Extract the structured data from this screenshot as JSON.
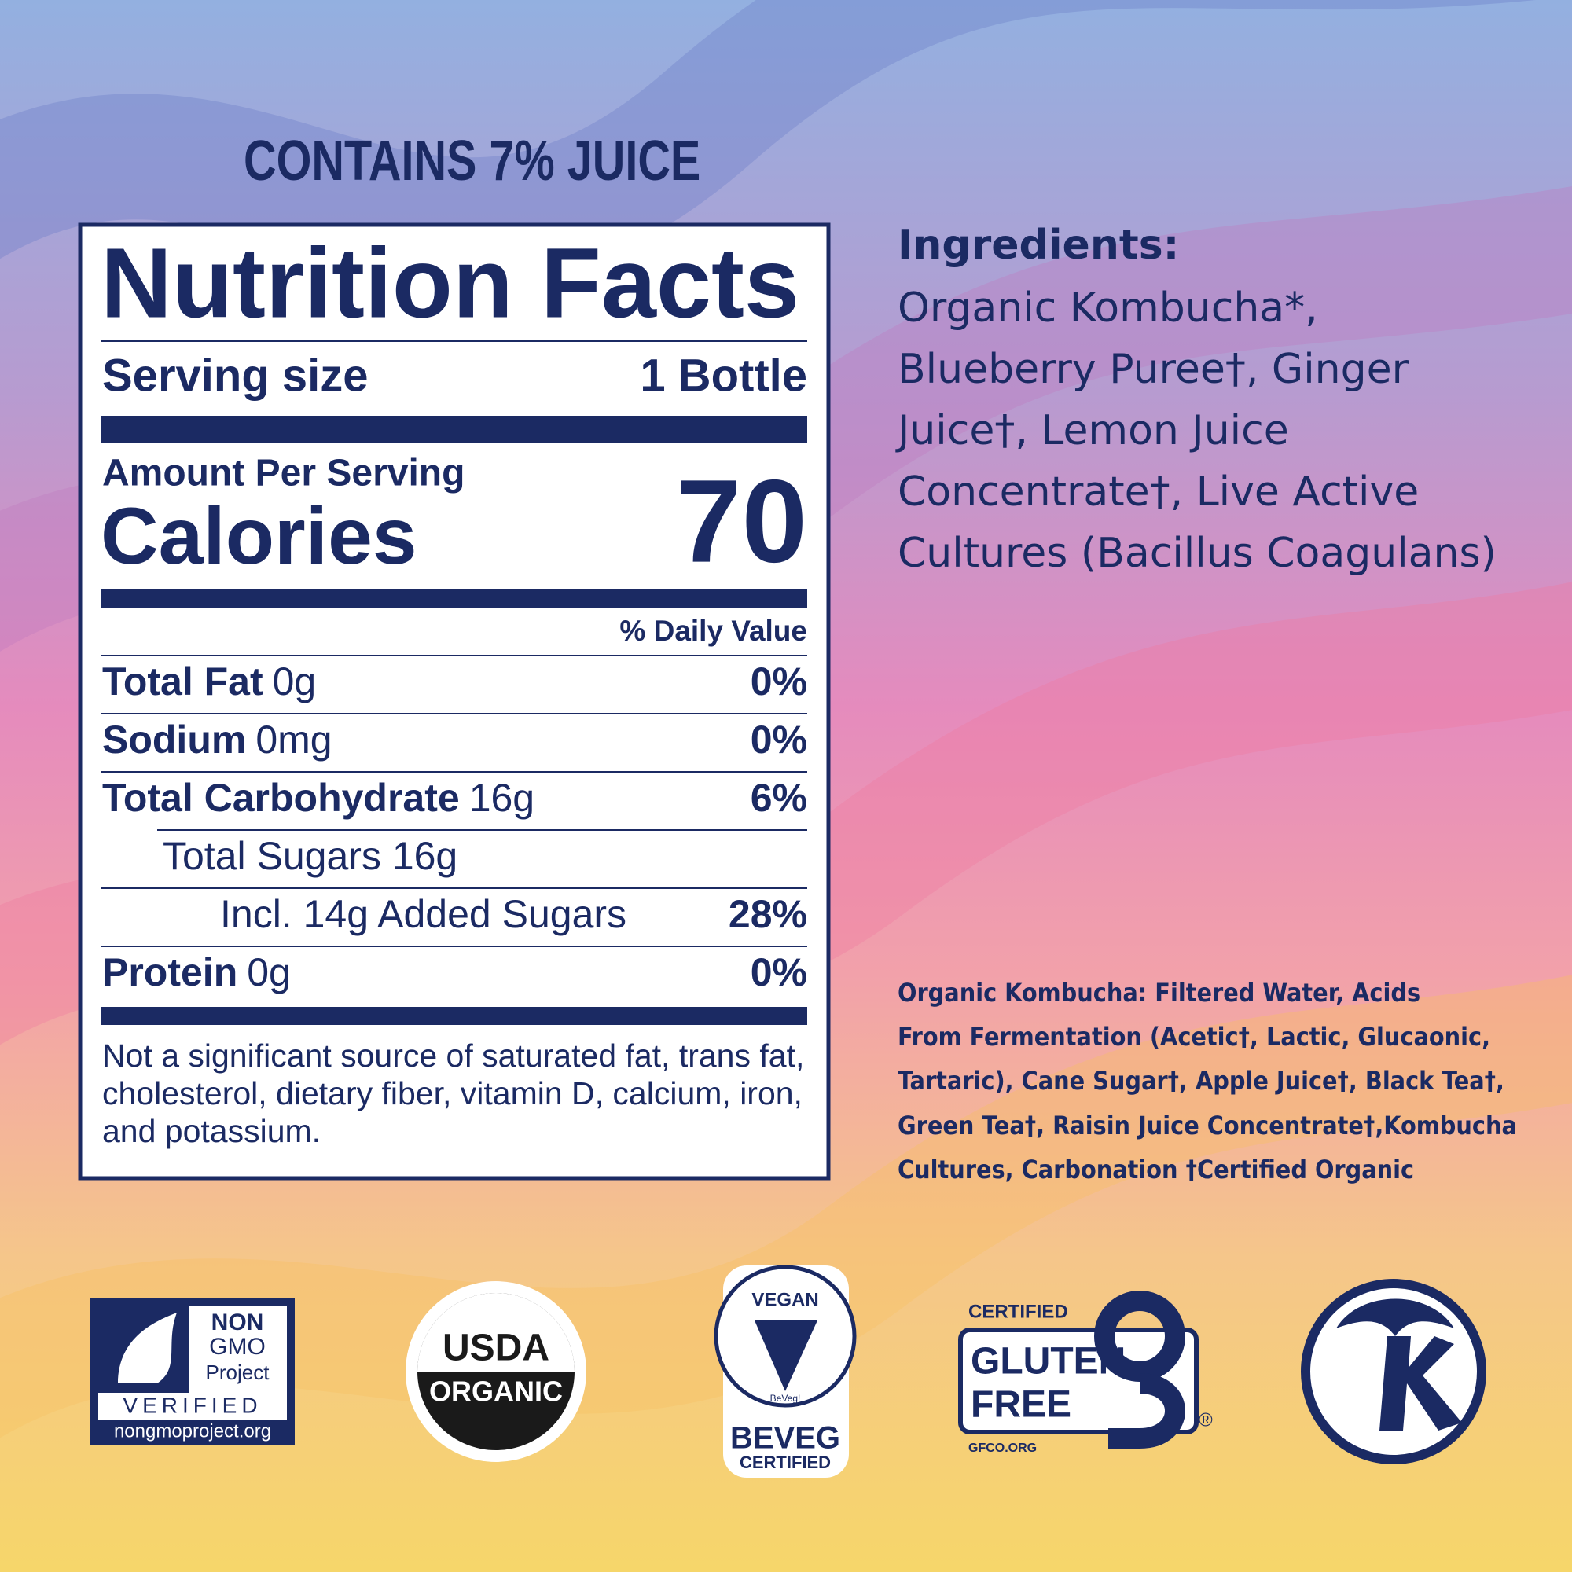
{
  "header": {
    "juice": "CONTAINS 7% JUICE"
  },
  "nutrition": {
    "title": "Nutrition Facts",
    "serving_label": "Serving size",
    "serving_value": "1 Bottle",
    "amount_label": "Amount Per Serving",
    "calories_label": "Calories",
    "calories": "70",
    "dv_header": "% Daily Value",
    "rows": [
      {
        "label": "Total Fat",
        "amount": "0g",
        "dv": "0%"
      },
      {
        "label": "Sodium",
        "amount": "0mg",
        "dv": "0%"
      },
      {
        "label": "Total Carbohydrate",
        "amount": "16g",
        "dv": "6%"
      },
      {
        "label": "Total Sugars 16g"
      },
      {
        "label": "Incl. 14g Added Sugars",
        "dv": "28%"
      },
      {
        "label": "Protein",
        "amount": "0g",
        "dv": "0%"
      }
    ],
    "footnote": [
      "Not a significant source of saturated fat, trans fat,",
      "cholesterol, dietary fiber, vitamin D, calcium, iron,",
      "and potassium."
    ]
  },
  "ingredients": {
    "title": "Ingredients:",
    "lines": [
      "Organic Kombucha*,",
      "Blueberry Puree†, Ginger",
      "Juice†, Lemon Juice",
      "Concentrate†, Live Active",
      "Cultures (Bacillus Coagulans)"
    ]
  },
  "kombucha_note": [
    "Organic Kombucha: Filtered Water, Acids",
    "From Fermentation (Acetic†, Lactic, Glucaonic,",
    "Tartaric), Cane Sugar†, Apple Juice†, Black Tea†,",
    "Green Tea†, Raisin Juice Concentrate†,Kombucha",
    "Cultures, Carbonation †Certified Organic"
  ],
  "logos": {
    "nongmo": [
      "NON",
      "GMO",
      "Project",
      "VERIFIED",
      "nongmoproject.org"
    ],
    "usda": [
      "USDA",
      "ORGANIC"
    ],
    "beveg": [
      "VEGAN",
      "BeVeg!",
      "BEVEG",
      "CERTIFIED"
    ],
    "gluten": [
      "CERTIFIED",
      "GLUTEN",
      "FREE",
      "GFCO.ORG",
      "®"
    ]
  }
}
